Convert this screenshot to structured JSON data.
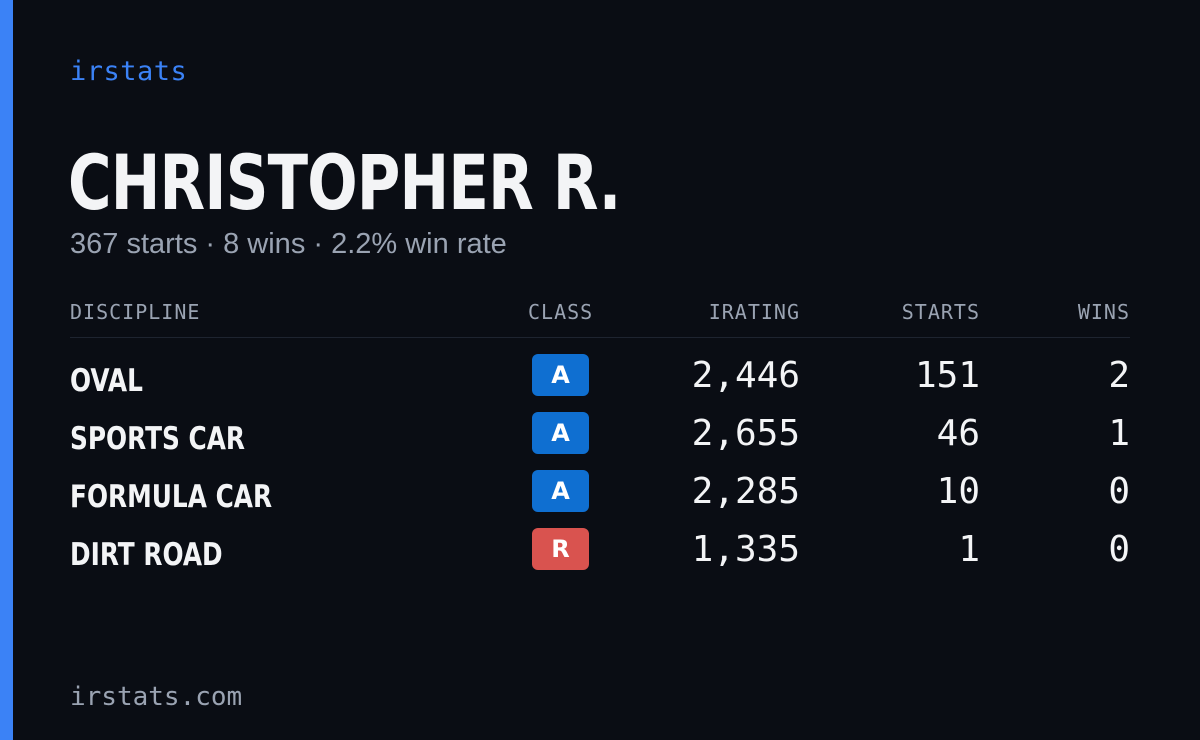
{
  "brand": "irstats",
  "driver": {
    "name": "CHRISTOPHER R.",
    "summary": "367 starts · 8 wins · 2.2% win rate"
  },
  "table": {
    "headers": {
      "discipline": "DISCIPLINE",
      "class": "CLASS",
      "irating": "IRATING",
      "starts": "STARTS",
      "wins": "WINS"
    },
    "rows": [
      {
        "discipline": "OVAL",
        "class": "A",
        "class_color": "#0f6fd1",
        "irating": "2,446",
        "starts": "151",
        "wins": "2"
      },
      {
        "discipline": "SPORTS CAR",
        "class": "A",
        "class_color": "#0f6fd1",
        "irating": "2,655",
        "starts": "46",
        "wins": "1"
      },
      {
        "discipline": "FORMULA CAR",
        "class": "A",
        "class_color": "#0f6fd1",
        "irating": "2,285",
        "starts": "10",
        "wins": "0"
      },
      {
        "discipline": "DIRT ROAD",
        "class": "R",
        "class_color": "#d9534f",
        "irating": "1,335",
        "starts": "1",
        "wins": "0"
      }
    ]
  },
  "footer": "irstats.com",
  "colors": {
    "background": "#0a0d14",
    "accent": "#3b82f6",
    "text": "#f3f4f6",
    "muted": "#9aa3b2"
  }
}
